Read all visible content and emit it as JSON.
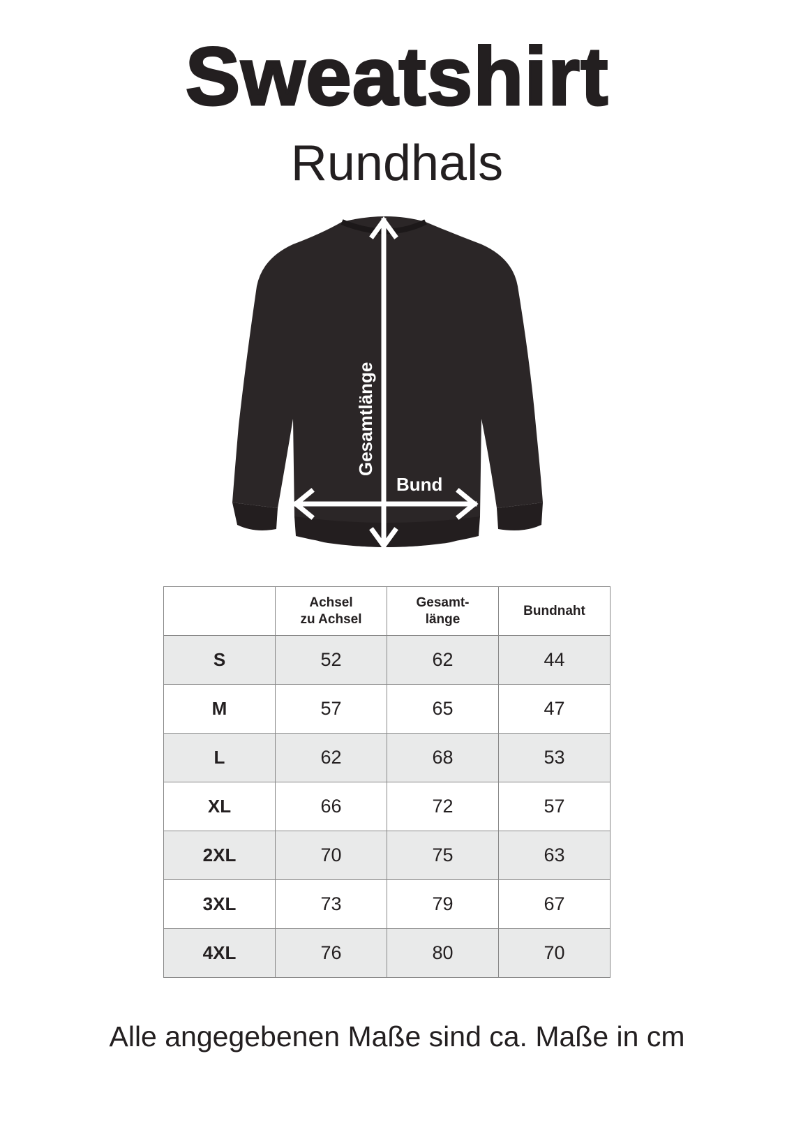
{
  "title": "Sweatshirt",
  "subtitle": "Rundhals",
  "illustration": {
    "length_label": "Gesamtlänge",
    "width_label": "Bund",
    "garment_color": "#2b2627"
  },
  "table": {
    "headers": [
      "",
      "Achsel zu Achsel",
      "Gesamt- länge",
      "Bundnaht"
    ],
    "header_lines": [
      [
        "",
        ""
      ],
      [
        "Achsel",
        "zu Achsel"
      ],
      [
        "Gesamt-",
        "länge"
      ],
      [
        "Bundnaht",
        ""
      ]
    ],
    "rows": [
      {
        "size": "S",
        "achsel": "52",
        "laenge": "62",
        "bundnaht": "44"
      },
      {
        "size": "M",
        "achsel": "57",
        "laenge": "65",
        "bundnaht": "47"
      },
      {
        "size": "L",
        "achsel": "62",
        "laenge": "68",
        "bundnaht": "53"
      },
      {
        "size": "XL",
        "achsel": "66",
        "laenge": "72",
        "bundnaht": "57"
      },
      {
        "size": "2XL",
        "achsel": "70",
        "laenge": "75",
        "bundnaht": "63"
      },
      {
        "size": "3XL",
        "achsel": "73",
        "laenge": "79",
        "bundnaht": "67"
      },
      {
        "size": "4XL",
        "achsel": "76",
        "laenge": "80",
        "bundnaht": "70"
      }
    ],
    "shade_color": "#e9eaea"
  },
  "footer": "Alle angegebenen Maße sind ca. Maße in cm"
}
